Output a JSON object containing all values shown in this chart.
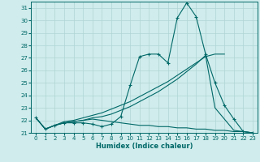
{
  "xlabel": "Humidex (Indice chaleur)",
  "background_color": "#d0ecec",
  "grid_color": "#b0d4d4",
  "line_color": "#006868",
  "xlim": [
    -0.5,
    23.5
  ],
  "ylim": [
    21.0,
    31.5
  ],
  "yticks": [
    21,
    22,
    23,
    24,
    25,
    26,
    27,
    28,
    29,
    30,
    31
  ],
  "xticks": [
    0,
    1,
    2,
    3,
    4,
    5,
    6,
    7,
    8,
    9,
    10,
    11,
    12,
    13,
    14,
    15,
    16,
    17,
    18,
    19,
    20,
    21,
    22,
    23
  ],
  "line1_x": [
    0,
    1,
    2,
    3,
    4,
    5,
    6,
    7,
    8,
    9,
    10,
    11,
    12,
    13,
    14,
    15,
    16,
    17,
    18,
    19,
    20,
    21,
    22,
    23
  ],
  "line1_y": [
    22.2,
    21.3,
    21.6,
    21.8,
    21.8,
    21.8,
    21.7,
    21.5,
    21.7,
    22.3,
    24.8,
    27.1,
    27.3,
    27.3,
    26.6,
    30.2,
    31.4,
    30.3,
    27.3,
    25.0,
    23.2,
    22.1,
    21.1,
    21.0
  ],
  "line2_x": [
    0,
    1,
    2,
    3,
    4,
    5,
    6,
    7,
    8,
    9,
    10,
    11,
    12,
    13,
    14,
    15,
    16,
    17,
    18,
    19,
    20
  ],
  "line2_y": [
    22.2,
    21.3,
    21.6,
    21.9,
    22.0,
    22.2,
    22.4,
    22.6,
    22.9,
    23.2,
    23.5,
    23.9,
    24.3,
    24.7,
    25.1,
    25.6,
    26.1,
    26.6,
    27.1,
    27.3,
    27.3
  ],
  "line3_x": [
    0,
    1,
    2,
    3,
    4,
    5,
    6,
    7,
    8,
    9,
    10,
    11,
    12,
    13,
    14,
    15,
    16,
    17,
    18,
    19,
    20,
    21,
    22,
    23
  ],
  "line3_y": [
    22.2,
    21.3,
    21.6,
    21.8,
    21.9,
    22.0,
    22.1,
    22.0,
    21.9,
    21.8,
    21.7,
    21.6,
    21.6,
    21.5,
    21.5,
    21.4,
    21.4,
    21.3,
    21.3,
    21.2,
    21.2,
    21.1,
    21.1,
    21.0
  ],
  "line4_x": [
    0,
    1,
    2,
    3,
    4,
    5,
    6,
    7,
    8,
    9,
    10,
    11,
    12,
    13,
    14,
    15,
    16,
    17,
    18,
    19,
    20,
    21,
    22,
    23
  ],
  "line4_y": [
    22.2,
    21.3,
    21.6,
    21.8,
    21.9,
    22.0,
    22.2,
    22.3,
    22.5,
    22.8,
    23.1,
    23.5,
    23.9,
    24.3,
    24.8,
    25.3,
    25.9,
    26.5,
    27.2,
    23.0,
    22.1,
    21.2,
    21.1,
    21.0
  ]
}
